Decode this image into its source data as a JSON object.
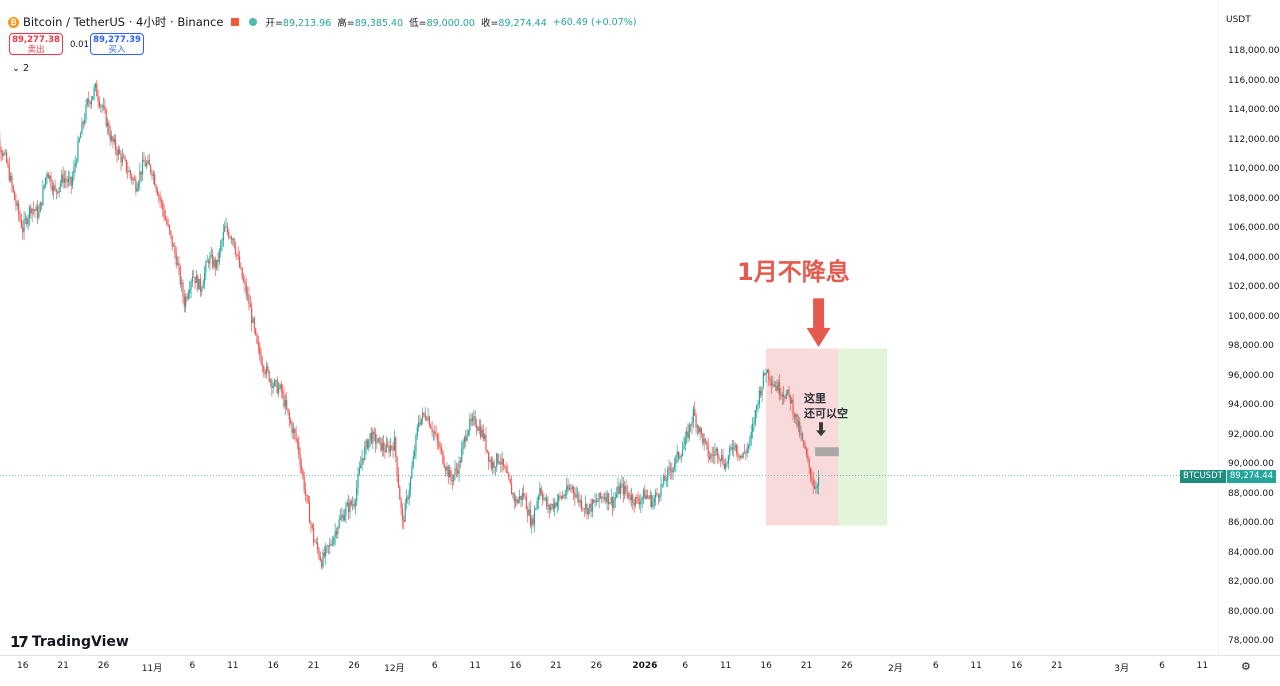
{
  "header": {
    "symbol": "Bitcoin / TetherUS · 4小时 · Binance",
    "open_label": "开=",
    "open": "89,213.96",
    "high_label": "高=",
    "high": "89,385.40",
    "low_label": "低=",
    "low": "89,000.00",
    "close_label": "收=",
    "close": "89,274.44",
    "change": "+60.49 (+0.07%)",
    "coin_glyph": "₿"
  },
  "order": {
    "sell_price": "89,277.38",
    "sell_label": "卖出",
    "spread": "0.01",
    "buy_price": "89,277.39",
    "buy_label": "买入"
  },
  "indicators_toggle": "⌄ 2",
  "currency": "USDT",
  "last_price": {
    "ticker": "BTCUSDT",
    "value": "89,274.44",
    "y": 89274.44
  },
  "annotations": {
    "headline": "1月不降息",
    "note_line1": "这里",
    "note_line2": "还可以空"
  },
  "branding": {
    "mark": "17",
    "name": "TradingView"
  },
  "settings_icon": "gear-icon",
  "colors": {
    "up": "#26a69a",
    "down": "#ef5350",
    "annotation": "#e55a4f",
    "loss_zone": "#f8d3d3",
    "profit_zone": "#dff3d6",
    "entry": "#9e9e9e"
  },
  "chart_data": {
    "type": "candlestick",
    "interval": "4小时",
    "ylim": [
      77000,
      119000
    ],
    "y_ticks": [
      "118,000.00",
      "116,000.00",
      "114,000.00",
      "112,000.00",
      "110,000.00",
      "108,000.00",
      "106,000.00",
      "104,000.00",
      "102,000.00",
      "100,000.00",
      "98,000.00",
      "96,000.00",
      "94,000.00",
      "92,000.00",
      "90,000.00",
      "88,000.00",
      "86,000.00",
      "84,000.00",
      "82,000.00",
      "80,000.00",
      "78,000.00"
    ],
    "y_tick_values": [
      118000,
      116000,
      114000,
      112000,
      110000,
      108000,
      106000,
      104000,
      102000,
      100000,
      98000,
      96000,
      94000,
      92000,
      90000,
      88000,
      86000,
      84000,
      82000,
      80000,
      78000
    ],
    "x_ticks": [
      {
        "label": "16",
        "day": -16
      },
      {
        "label": "21",
        "day": -11
      },
      {
        "label": "26",
        "day": -6
      },
      {
        "label": "11月",
        "day": 0
      },
      {
        "label": "6",
        "day": 5
      },
      {
        "label": "11",
        "day": 10
      },
      {
        "label": "16",
        "day": 15
      },
      {
        "label": "21",
        "day": 20
      },
      {
        "label": "26",
        "day": 25
      },
      {
        "label": "12月",
        "day": 30
      },
      {
        "label": "6",
        "day": 35
      },
      {
        "label": "11",
        "day": 40
      },
      {
        "label": "16",
        "day": 45
      },
      {
        "label": "21",
        "day": 50
      },
      {
        "label": "26",
        "day": 55
      },
      {
        "label": "2026",
        "day": 61,
        "bold": true
      },
      {
        "label": "6",
        "day": 66
      },
      {
        "label": "11",
        "day": 71
      },
      {
        "label": "16",
        "day": 76
      },
      {
        "label": "21",
        "day": 81
      },
      {
        "label": "26",
        "day": 86
      },
      {
        "label": "2月",
        "day": 92
      },
      {
        "label": "6",
        "day": 97
      },
      {
        "label": "11",
        "day": 102
      },
      {
        "label": "16",
        "day": 107
      },
      {
        "label": "21",
        "day": 112
      },
      {
        "label": "3月",
        "day": 120
      },
      {
        "label": "6",
        "day": 125
      },
      {
        "label": "11",
        "day": 130
      }
    ],
    "price_path": [
      [
        -20,
        115000
      ],
      [
        -19,
        112000
      ],
      [
        -18,
        110500
      ],
      [
        -17,
        108000
      ],
      [
        -16,
        106000
      ],
      [
        -15,
        107500
      ],
      [
        -14,
        107000
      ],
      [
        -13,
        110000
      ],
      [
        -12,
        108500
      ],
      [
        -11,
        109500
      ],
      [
        -10,
        109000
      ],
      [
        -9,
        112000
      ],
      [
        -8,
        114500
      ],
      [
        -7,
        115500
      ],
      [
        -6,
        114000
      ],
      [
        -5,
        112000
      ],
      [
        -4,
        111000
      ],
      [
        -3,
        110000
      ],
      [
        -2,
        109000
      ],
      [
        -1,
        110500
      ],
      [
        0,
        110000
      ],
      [
        1,
        108000
      ],
      [
        2,
        106000
      ],
      [
        3,
        104000
      ],
      [
        4,
        101000
      ],
      [
        5,
        103000
      ],
      [
        6,
        102000
      ],
      [
        7,
        104000
      ],
      [
        8,
        103500
      ],
      [
        9,
        106000
      ],
      [
        10,
        105500
      ],
      [
        11,
        103000
      ],
      [
        12,
        101000
      ],
      [
        13,
        98000
      ],
      [
        14,
        96500
      ],
      [
        15,
        95500
      ],
      [
        16,
        95000
      ],
      [
        17,
        93000
      ],
      [
        18,
        91500
      ],
      [
        19,
        88000
      ],
      [
        20,
        85000
      ],
      [
        21,
        83500
      ],
      [
        22,
        84500
      ],
      [
        23,
        86000
      ],
      [
        24,
        87000
      ],
      [
        25,
        87500
      ],
      [
        26,
        90500
      ],
      [
        27,
        92000
      ],
      [
        28,
        91500
      ],
      [
        29,
        91000
      ],
      [
        30,
        91500
      ],
      [
        31,
        86000
      ],
      [
        32,
        89000
      ],
      [
        33,
        93000
      ],
      [
        34,
        93500
      ],
      [
        35,
        92000
      ],
      [
        36,
        90500
      ],
      [
        37,
        89000
      ],
      [
        38,
        90000
      ],
      [
        39,
        92500
      ],
      [
        40,
        93000
      ],
      [
        41,
        92000
      ],
      [
        42,
        90000
      ],
      [
        43,
        90500
      ],
      [
        44,
        89000
      ],
      [
        45,
        87500
      ],
      [
        46,
        88000
      ],
      [
        47,
        86000
      ],
      [
        48,
        88500
      ],
      [
        49,
        87000
      ],
      [
        50,
        87500
      ],
      [
        51,
        88000
      ],
      [
        52,
        88500
      ],
      [
        53,
        87500
      ],
      [
        54,
        87000
      ],
      [
        55,
        87500
      ],
      [
        56,
        88000
      ],
      [
        57,
        87500
      ],
      [
        58,
        88500
      ],
      [
        59,
        88000
      ],
      [
        60,
        87500
      ],
      [
        61,
        88000
      ],
      [
        62,
        87500
      ],
      [
        63,
        88500
      ],
      [
        64,
        89500
      ],
      [
        65,
        90500
      ],
      [
        66,
        91500
      ],
      [
        67,
        93500
      ],
      [
        68,
        92000
      ],
      [
        69,
        90500
      ],
      [
        70,
        91000
      ],
      [
        71,
        90000
      ],
      [
        72,
        91500
      ],
      [
        73,
        90500
      ],
      [
        74,
        91500
      ],
      [
        75,
        94500
      ],
      [
        76,
        96500
      ],
      [
        77,
        95500
      ],
      [
        78,
        95000
      ],
      [
        79,
        94500
      ],
      [
        80,
        92500
      ],
      [
        81,
        90500
      ],
      [
        82,
        88500
      ],
      [
        82.6,
        89274
      ]
    ],
    "vertical_markers": [
      {
        "label": "entry-arrow",
        "day": 82.5,
        "price_top": 101000,
        "price_bottom": 98000
      }
    ],
    "position": {
      "type": "short",
      "start_day": 76,
      "end_day": 91,
      "split_day": 85,
      "top": 97900,
      "bottom": 85900,
      "entry_top": 91200,
      "entry_bottom": 90600
    }
  }
}
